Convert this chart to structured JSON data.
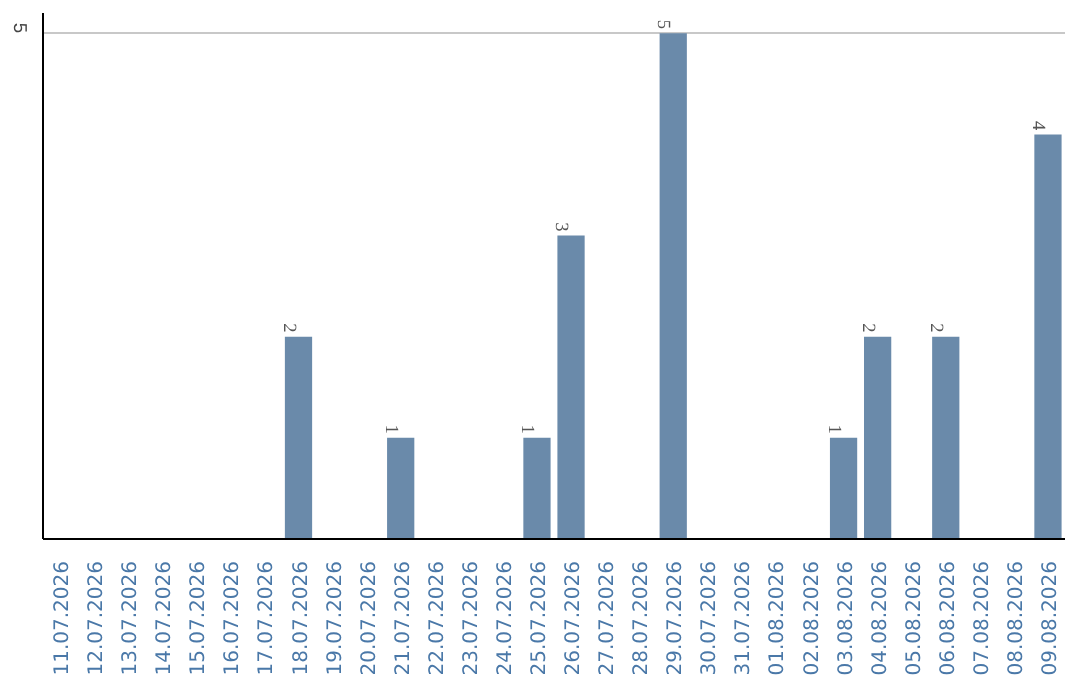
{
  "chart_data": {
    "type": "bar",
    "categories": [
      "11.07.2026",
      "12.07.2026",
      "13.07.2026",
      "14.07.2026",
      "15.07.2026",
      "16.07.2026",
      "17.07.2026",
      "18.07.2026",
      "19.07.2026",
      "20.07.2026",
      "21.07.2026",
      "22.07.2026",
      "23.07.2026",
      "24.07.2026",
      "25.07.2026",
      "26.07.2026",
      "27.07.2026",
      "28.07.2026",
      "29.07.2026",
      "30.07.2026",
      "31.07.2026",
      "01.08.2026",
      "02.08.2026",
      "03.08.2026",
      "04.08.2026",
      "05.08.2026",
      "06.08.2026",
      "07.08.2026",
      "08.08.2026",
      "09.08.2026"
    ],
    "values": [
      0,
      0,
      0,
      0,
      0,
      0,
      0,
      2,
      0,
      0,
      1,
      0,
      0,
      0,
      1,
      3,
      0,
      0,
      5,
      0,
      0,
      0,
      0,
      1,
      2,
      0,
      2,
      0,
      0,
      4
    ],
    "value_labels": [
      null,
      null,
      null,
      null,
      null,
      null,
      null,
      "2",
      null,
      null,
      "1",
      null,
      null,
      null,
      "1",
      "3",
      null,
      null,
      "5",
      null,
      null,
      null,
      null,
      "1",
      "2",
      null,
      "2",
      null,
      null,
      "4"
    ],
    "color": "#6a8aaa",
    "ylim": [
      0,
      5.2
    ],
    "yticks": [
      5
    ],
    "grid": "y"
  }
}
